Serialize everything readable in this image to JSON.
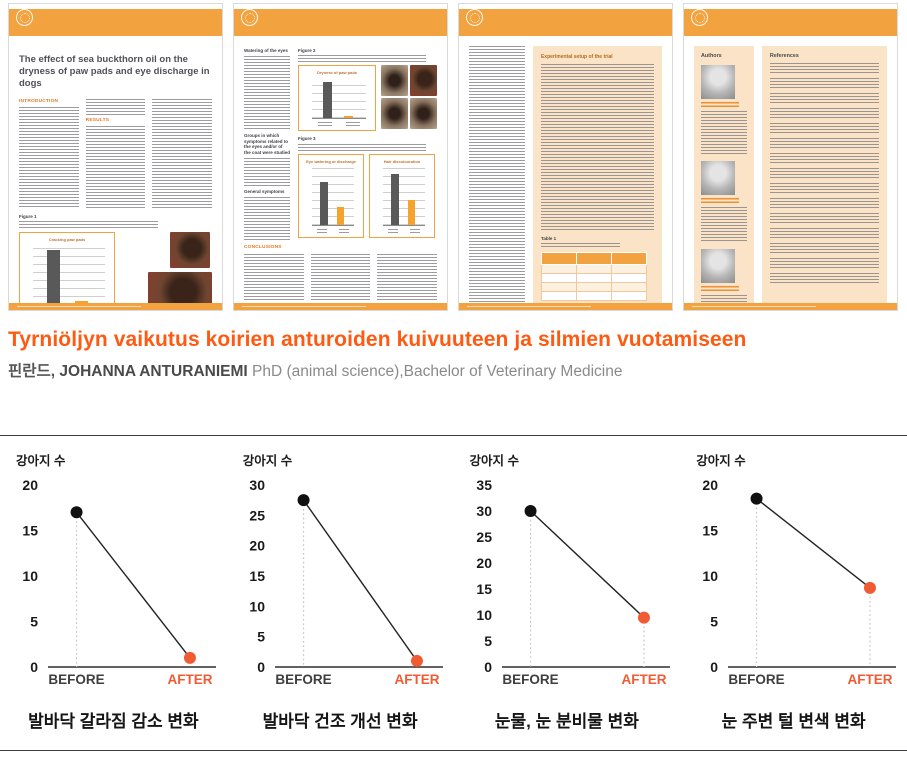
{
  "paper": {
    "page1": {
      "title": "The effect of sea buckthorn oil on the dryness of paw pads and eye discharge in dogs",
      "h_intro": "INTRODUCTION",
      "h_results": "RESULTS",
      "h_figure1": "Figure 1",
      "chart": {
        "title": "Cracking paw pads",
        "bars": [
          0.92,
          0.06
        ]
      }
    },
    "page2": {
      "h_watering": "Watering of the eyes",
      "h_groups": "Groups in which symptoms related to the eyes and/or of the coat were studied",
      "h_general": "General symptoms",
      "h_figure2": "Figure 2",
      "h_figure3": "Figure 3",
      "h_conclusions": "CONCLUSIONS",
      "chart_dryness": {
        "title": "Dryness of paw pads",
        "bars": [
          0.9,
          0.05
        ]
      },
      "chart_eye": {
        "title": "Eye watering or discharge",
        "bars": [
          0.74,
          0.3
        ]
      },
      "chart_hair": {
        "title": "Hair discolouration",
        "bars": [
          0.88,
          0.42
        ]
      }
    },
    "page3": {
      "h_setup": "Experimental setup of the trial",
      "h_table1": "Table 1"
    },
    "page4": {
      "h_authors": "Authors",
      "h_references": "References"
    }
  },
  "headline": {
    "title": "Tyrniöljyn vaikutus koirien anturoiden kuivuuteen ja silmien vuotamiseen",
    "subtitle_prefix": "핀란드,",
    "subtitle_name": "JOHANNA ANTURANIEMI",
    "subtitle_rest": "PhD (animal science),Bachelor of Veterinary Medicine"
  },
  "chart_data": [
    {
      "type": "line",
      "title": "발바닥 갈라짐 감소 변화",
      "ylabel": "강아지 수",
      "categories": [
        "BEFORE",
        "AFTER"
      ],
      "values": [
        17,
        1
      ],
      "ylim": [
        0,
        20
      ],
      "ytick": 5,
      "drop_lines": [
        true,
        false
      ]
    },
    {
      "type": "line",
      "title": "발바닥 건조 개선 변화",
      "ylabel": "강아지 수",
      "categories": [
        "BEFORE",
        "AFTER"
      ],
      "values": [
        27.5,
        1
      ],
      "ylim": [
        0,
        30
      ],
      "ytick": 5,
      "drop_lines": [
        true,
        false
      ]
    },
    {
      "type": "line",
      "title": "눈물, 눈 분비물 변화",
      "ylabel": "강아지 수",
      "categories": [
        "BEFORE",
        "AFTER"
      ],
      "values": [
        30,
        9.5
      ],
      "ylim": [
        0,
        35
      ],
      "ytick": 5,
      "drop_lines": [
        true,
        true
      ]
    },
    {
      "type": "line",
      "title": "눈 주변 털 변색 변화",
      "ylabel": "강아지 수",
      "categories": [
        "BEFORE",
        "AFTER"
      ],
      "values": [
        18.5,
        8.7
      ],
      "ylim": [
        0,
        20
      ],
      "ytick": 5,
      "drop_lines": [
        true,
        true
      ]
    }
  ],
  "colors": {
    "paper_accent": "#F2A23E",
    "headline_orange": "#FF5A12",
    "before_dot": "#111111",
    "after_coral": "#F15B33",
    "peach_box": "#FAE3C6"
  }
}
